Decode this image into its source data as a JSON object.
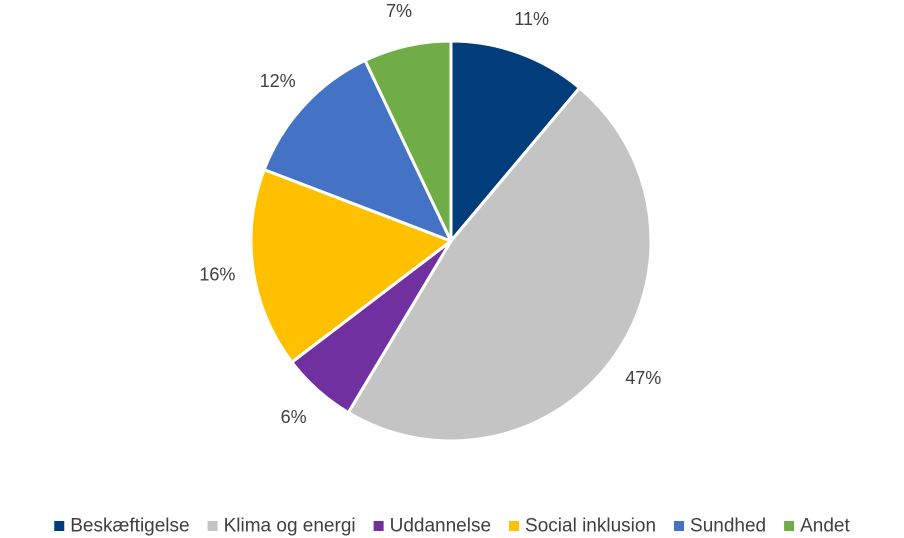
{
  "chart_data": {
    "type": "pie",
    "categories": [
      "Beskæftigelse",
      "Klima og energi",
      "Uddannelse",
      "Social inklusion",
      "Sundhed",
      "Andet"
    ],
    "values": [
      11,
      47,
      6,
      16,
      12,
      7
    ],
    "value_labels": [
      "11%",
      "47%",
      "6%",
      "16%",
      "12%",
      "7%"
    ],
    "colors": [
      "#003d7a",
      "#c4c4c4",
      "#7030a0",
      "#ffc000",
      "#4472c4",
      "#70ad47"
    ],
    "start_angle_deg": 0,
    "direction": "clockwise",
    "legend_position": "bottom",
    "title": ""
  }
}
